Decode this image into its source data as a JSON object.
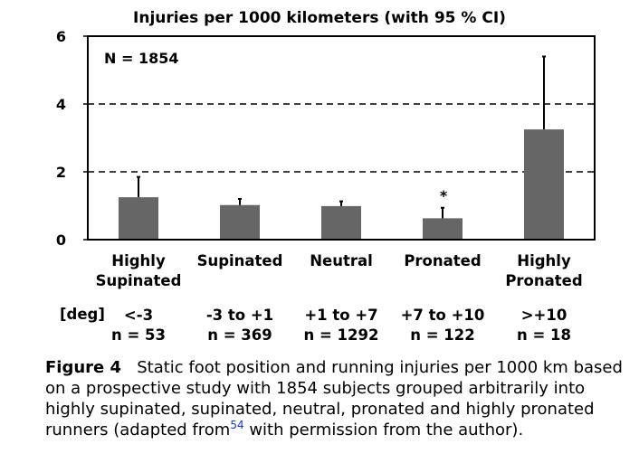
{
  "chart_data": {
    "type": "bar",
    "title": "Injuries per 1000 kilometers (with 95 % CI)",
    "annotation": "N = 1854",
    "categories": [
      "Highly Supinated",
      "Supinated",
      "Neutral",
      "Pronated",
      "Highly Pronated"
    ],
    "values": [
      1.25,
      1.02,
      0.99,
      0.63,
      3.25
    ],
    "ci_upper": [
      1.85,
      1.2,
      1.13,
      0.94,
      5.4
    ],
    "significance_marks": [
      "",
      "",
      "",
      "*",
      ""
    ],
    "ylim": [
      0,
      6
    ],
    "yticks": [
      0,
      2,
      4,
      6
    ],
    "dashed_gridlines": [
      2,
      4
    ],
    "xlabel": "",
    "ylabel": "",
    "bar_color": "#666666"
  },
  "categories_display": [
    [
      "Highly",
      "Supinated"
    ],
    [
      "Supinated"
    ],
    [
      "Neutral"
    ],
    [
      "Pronated"
    ],
    [
      "Highly",
      "Pronated"
    ]
  ],
  "table": {
    "deg_label": "[deg]",
    "deg": [
      "<-3",
      "-3 to +1",
      "+1 to +7",
      "+7 to +10",
      ">+10"
    ],
    "n": [
      "n = 53",
      "n = 369",
      "n = 1292",
      "n = 122",
      "n = 18"
    ]
  },
  "caption": {
    "label": "Figure 4",
    "text_before": "Static foot position and running injuries per 1000 km based on a prospective study with 1854 subjects grouped arbitrarily into highly supinated, supinated, neutral, pronated and highly pronated runners (adapted from",
    "ref": "54",
    "text_after": " with permission from the author)."
  }
}
